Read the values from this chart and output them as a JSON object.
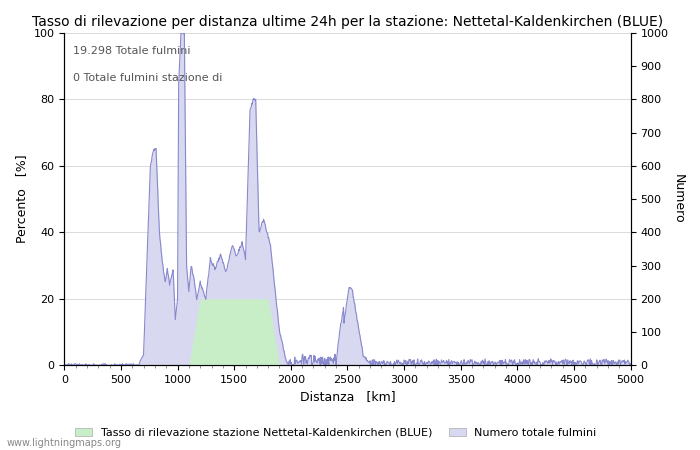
{
  "title": "Tasso di rilevazione per distanza ultime 24h per la stazione: Nettetal-Kaldenkirchen (BLUE)",
  "xlabel": "Distanza   [km]",
  "ylabel_left": "Percento   [%]",
  "ylabel_right": "Numero",
  "annotation_line1": "19.298 Totale fulmini",
  "annotation_line2": "0 Totale fulmini stazione di",
  "xlim": [
    0,
    5000
  ],
  "ylim_left": [
    0,
    100
  ],
  "ylim_right": [
    0,
    1000
  ],
  "xticks": [
    0,
    500,
    1000,
    1500,
    2000,
    2500,
    3000,
    3500,
    4000,
    4500,
    5000
  ],
  "yticks_left": [
    0,
    20,
    40,
    60,
    80,
    100
  ],
  "yticks_right": [
    0,
    100,
    200,
    300,
    400,
    500,
    600,
    700,
    800,
    900,
    1000
  ],
  "legend_label_green": "Tasso di rilevazione stazione Nettetal-Kaldenkirchen (BLUE)",
  "legend_label_blue": "Numero totale fulmini",
  "watermark": "www.lightningmaps.org",
  "line_color": "#8888cc",
  "fill_green_color": "#c8eec8",
  "fill_blue_color": "#d8d8f0",
  "background_color": "#ffffff",
  "grid_color": "#cccccc",
  "title_fontsize": 10,
  "axis_fontsize": 9,
  "tick_fontsize": 8,
  "legend_fontsize": 8,
  "watermark_fontsize": 7
}
